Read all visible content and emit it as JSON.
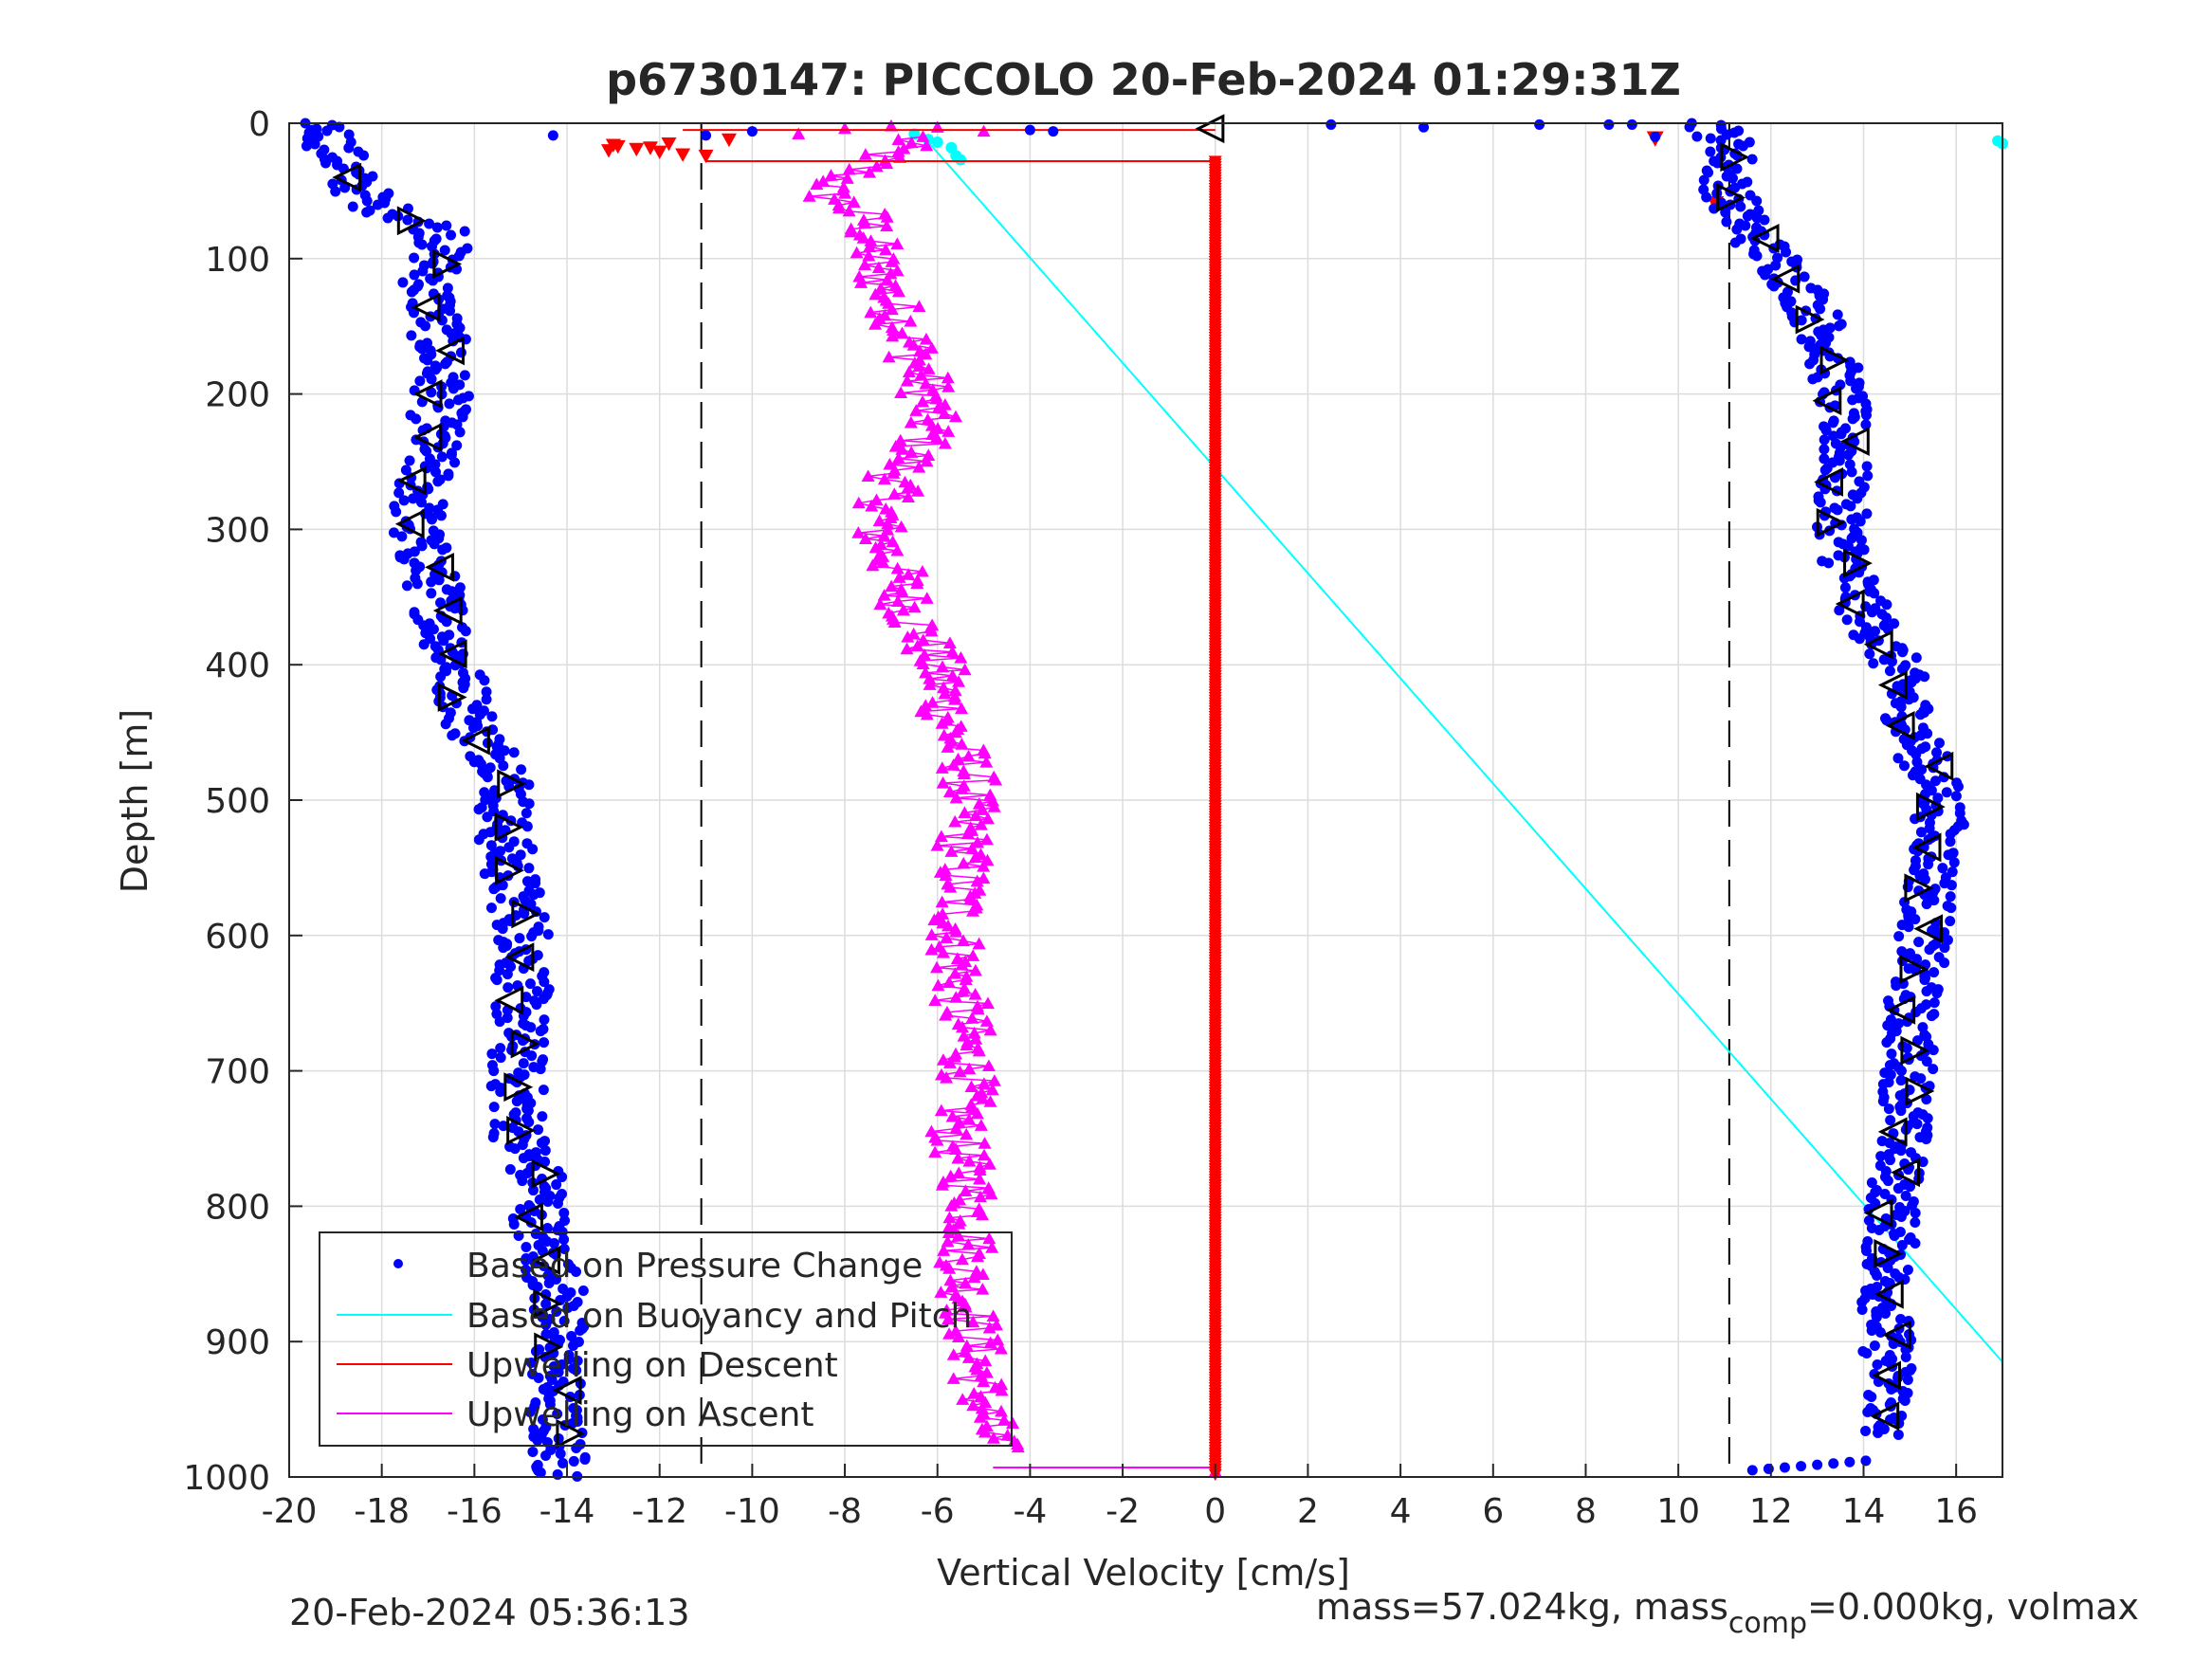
{
  "chart_data": {
    "type": "scatter",
    "title": "p6730147: PICCOLO 20-Feb-2024 01:29:31Z",
    "xlabel": "Vertical Velocity [cm/s]",
    "ylabel": "Depth [m]",
    "xlim": [
      -20,
      17
    ],
    "ylim": [
      0,
      1000
    ],
    "y_reversed": true,
    "x_ticks": [
      -20,
      -18,
      -16,
      -14,
      -12,
      -10,
      -8,
      -6,
      -4,
      -2,
      0,
      2,
      4,
      6,
      8,
      10,
      12,
      14,
      16
    ],
    "y_ticks": [
      0,
      100,
      200,
      300,
      400,
      500,
      600,
      700,
      800,
      900,
      1000
    ],
    "grid": true,
    "legend_position": "bottom-left",
    "reference_lines": [
      -11.1,
      11.1
    ],
    "series": [
      {
        "name": "Based on Pressure Change",
        "marker": "dot",
        "color": "#0000ff",
        "descent_profile": [
          [
            0,
            -19.2
          ],
          [
            20,
            -19.0
          ],
          [
            40,
            -18.7
          ],
          [
            60,
            -18.2
          ],
          [
            80,
            -16.6
          ],
          [
            100,
            -16.8
          ],
          [
            120,
            -17.0
          ],
          [
            150,
            -16.8
          ],
          [
            200,
            -16.7
          ],
          [
            250,
            -17.0
          ],
          [
            300,
            -17.3
          ],
          [
            350,
            -16.8
          ],
          [
            400,
            -16.4
          ],
          [
            450,
            -16.0
          ],
          [
            480,
            -15.2
          ],
          [
            520,
            -15.4
          ],
          [
            560,
            -15.2
          ],
          [
            600,
            -14.9
          ],
          [
            650,
            -15.0
          ],
          [
            700,
            -15.1
          ],
          [
            750,
            -15.0
          ],
          [
            790,
            -14.5
          ],
          [
            820,
            -14.6
          ],
          [
            860,
            -14.2
          ],
          [
            900,
            -14.2
          ],
          [
            950,
            -14.3
          ],
          [
            1000,
            -14.1
          ]
        ],
        "ascent_profile": [
          [
            0,
            10.7
          ],
          [
            20,
            11.2
          ],
          [
            40,
            11.0
          ],
          [
            60,
            11.2
          ],
          [
            80,
            11.5
          ],
          [
            100,
            12.1
          ],
          [
            130,
            12.8
          ],
          [
            160,
            13.2
          ],
          [
            200,
            13.5
          ],
          [
            240,
            13.6
          ],
          [
            280,
            13.5
          ],
          [
            320,
            13.6
          ],
          [
            360,
            14.0
          ],
          [
            400,
            14.7
          ],
          [
            450,
            15.1
          ],
          [
            480,
            15.4
          ],
          [
            500,
            15.7
          ],
          [
            530,
            15.6
          ],
          [
            580,
            15.4
          ],
          [
            620,
            15.2
          ],
          [
            660,
            15.0
          ],
          [
            700,
            15.0
          ],
          [
            740,
            14.9
          ],
          [
            780,
            14.7
          ],
          [
            820,
            14.6
          ],
          [
            860,
            14.5
          ],
          [
            900,
            14.5
          ],
          [
            940,
            14.6
          ],
          [
            970,
            14.3
          ],
          [
            1000,
            11.6
          ]
        ],
        "surface_points": [
          [
            -19.5,
            5
          ],
          [
            -14.3,
            9
          ],
          [
            -11,
            9
          ],
          [
            -10,
            6
          ],
          [
            -4,
            5
          ],
          [
            -3.5,
            6
          ],
          [
            2.5,
            1
          ],
          [
            4.5,
            3
          ],
          [
            7.0,
            1
          ],
          [
            8.5,
            1
          ],
          [
            9.0,
            1
          ],
          [
            9.5,
            10
          ]
        ]
      },
      {
        "name": "Based on Buoyancy and Pitch",
        "marker": "line",
        "color": "#00ffff",
        "line_points": [
          [
            -6.3,
            10
          ],
          [
            17.0,
            915
          ]
        ],
        "extra_points": [
          [
            -6.5,
            8
          ],
          [
            -6.2,
            12
          ],
          [
            -6.0,
            14
          ],
          [
            -5.7,
            18
          ],
          [
            -5.6,
            24
          ],
          [
            -5.5,
            27
          ],
          [
            16.9,
            13
          ],
          [
            17.0,
            15
          ]
        ]
      },
      {
        "name": "Upwelling on Descent",
        "marker": "triangle-down",
        "color": "#ff0000",
        "x_const": 0,
        "depth_range": [
          28,
          998
        ],
        "surface_points": [
          [
            -13.1,
            20
          ],
          [
            -12.9,
            17
          ],
          [
            -12.5,
            19
          ],
          [
            -12.0,
            21
          ],
          [
            -11.5,
            23
          ],
          [
            -11.0,
            24
          ],
          [
            -10.5,
            12
          ],
          [
            -11.8,
            15
          ],
          [
            -13.0,
            16
          ],
          [
            -12.2,
            18
          ]
        ],
        "extra_points": [
          [
            9.5,
            11
          ],
          [
            10.8,
            59
          ]
        ]
      },
      {
        "name": "Upwelling on Ascent",
        "marker": "triangle-up",
        "color": "#ff00ff",
        "profile": [
          [
            10,
            -6.5
          ],
          [
            30,
            -7.5
          ],
          [
            50,
            -8.5
          ],
          [
            70,
            -7.5
          ],
          [
            100,
            -7.4
          ],
          [
            130,
            -7.0
          ],
          [
            160,
            -6.6
          ],
          [
            200,
            -6.2
          ],
          [
            230,
            -6.2
          ],
          [
            260,
            -6.9
          ],
          [
            300,
            -7.3
          ],
          [
            330,
            -6.9
          ],
          [
            360,
            -6.6
          ],
          [
            400,
            -6.0
          ],
          [
            450,
            -5.7
          ],
          [
            480,
            -5.3
          ],
          [
            520,
            -5.4
          ],
          [
            560,
            -5.5
          ],
          [
            600,
            -5.6
          ],
          [
            650,
            -5.5
          ],
          [
            700,
            -5.3
          ],
          [
            750,
            -5.6
          ],
          [
            800,
            -5.2
          ],
          [
            850,
            -5.4
          ],
          [
            900,
            -5.2
          ],
          [
            950,
            -5.0
          ],
          [
            980,
            -4.8
          ]
        ],
        "extra_points": [
          [
            -9.0,
            8
          ],
          [
            -8.0,
            4
          ],
          [
            -7.0,
            2
          ],
          [
            -6.0,
            3
          ],
          [
            -5.0,
            6
          ],
          [
            0,
            996
          ]
        ]
      }
    ],
    "annotation_markers_note": "black open triangles overlaid on pressure-change series"
  },
  "footer": {
    "timestamp": "20-Feb-2024 05:36:13",
    "mass_prefix": "mass=57.024kg, mass",
    "mass_sub": "comp",
    "mass_suffix": "=0.000kg, volmax"
  }
}
